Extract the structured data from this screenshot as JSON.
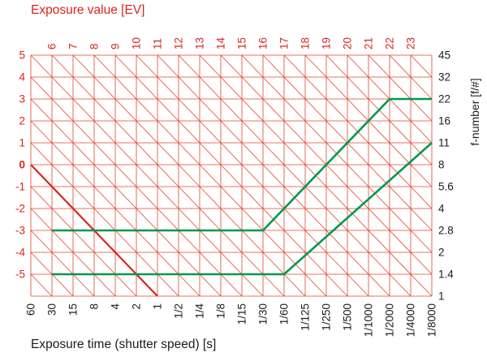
{
  "chart_data": {
    "type": "line",
    "title": "Exposure value [EV]",
    "xlabel": "Exposure time (shutter speed) [s]",
    "ylabel_right": "f-number [f/#]",
    "grid": true,
    "x_tick_labels": [
      "60",
      "30",
      "15",
      "8",
      "4",
      "2",
      "1",
      "1/2",
      "1/4",
      "1/8",
      "1/15",
      "1/30",
      "1/60",
      "1/125",
      "1/250",
      "1/500",
      "1/1000",
      "1/2000",
      "1/4000",
      "1/8000"
    ],
    "f_number_labels": [
      "45",
      "32",
      "22",
      "16",
      "11",
      "8",
      "5.6",
      "4",
      "2.8",
      "2",
      "1.4",
      "1"
    ],
    "ev_top_labels": [
      "6",
      "7",
      "8",
      "9",
      "10",
      "11",
      "12",
      "13",
      "14",
      "15",
      "16",
      "17",
      "18",
      "19",
      "20",
      "21",
      "22",
      "23"
    ],
    "ev_left_labels": [
      "5",
      "4",
      "3",
      "2",
      "1",
      "0",
      "-1",
      "-2",
      "-3",
      "-4",
      "-5"
    ],
    "ev_left_bold_label": "0",
    "series": [
      {
        "name": "ev-0-highlight-line",
        "color": "#da251d",
        "width": 2.2,
        "points": [
          [
            "60",
            "8"
          ],
          [
            "1",
            "1"
          ]
        ]
      },
      {
        "name": "program-curve-upper",
        "color": "#00984f",
        "width": 2.6,
        "points": [
          [
            "30",
            "2.8"
          ],
          [
            "1/30",
            "2.8"
          ],
          [
            "1/2000",
            "22"
          ],
          [
            "1/8000",
            "22"
          ]
        ]
      },
      {
        "name": "program-curve-lower",
        "color": "#00984f",
        "width": 2.6,
        "points": [
          [
            "30",
            "1.4"
          ],
          [
            "1/60",
            "1.4"
          ],
          [
            "1/8000",
            "11"
          ]
        ]
      }
    ],
    "colors": {
      "red_line": "#e0442f",
      "red_text": "#da251d",
      "green": "#00984f",
      "black_text": "#1c1c1c"
    }
  }
}
